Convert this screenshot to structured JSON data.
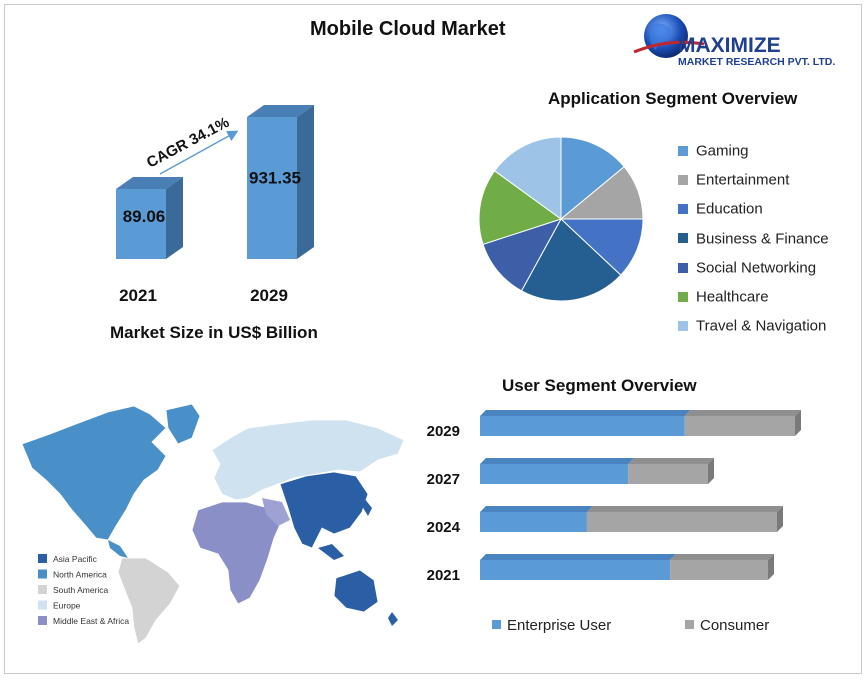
{
  "page_title": "Mobile Cloud Market",
  "logo": {
    "name": "MAXIMIZE",
    "tagline": "MARKET RESEARCH PVT. LTD."
  },
  "colors": {
    "bar_front": "#5b9bd5",
    "bar_side": "#3a6a98",
    "bar_top": "#4a7fb5",
    "gaming": "#5b9bd5",
    "entertainment": "#a5a5a5",
    "education": "#4472c4",
    "business_finance": "#255e91",
    "social_networking": "#3c5fa8",
    "healthcare": "#70ad47",
    "travel_navigation": "#9dc3e6",
    "enterprise": "#5b9bd5",
    "consumer": "#a5a5a5"
  },
  "market_size": {
    "title": "Market Size in US$ Billion",
    "cagr_label": "CAGR 34.1%"
  },
  "application": {
    "title": "Application Segment Overview"
  },
  "user": {
    "title": "User Segment Overview"
  },
  "map": {
    "legend": [
      "Asia Pacific",
      "North America",
      "South America",
      "Europe",
      "Middle East & Africa"
    ],
    "legend_colors": [
      "#2a5fa5",
      "#4a90c8",
      "#d3d3d3",
      "#cfe2f0",
      "#8b8fc8"
    ]
  },
  "chart_data": [
    {
      "type": "bar",
      "title": "Market Size in US$ Billion",
      "categories": [
        "2021",
        "2029"
      ],
      "values": [
        89.06,
        931.35
      ],
      "value_labels": [
        "89.06",
        "931.35"
      ],
      "annotation": "CAGR 34.1%"
    },
    {
      "type": "pie",
      "title": "Application Segment Overview",
      "labels": [
        "Gaming",
        "Entertainment",
        "Education",
        "Business & Finance",
        "Social Networking",
        "Healthcare",
        "Travel & Navigation"
      ],
      "values": [
        14,
        11,
        12,
        21,
        12,
        15,
        15
      ],
      "legend_position": "right"
    },
    {
      "type": "bar",
      "orientation": "horizontal",
      "stacked": true,
      "title": "User Segment Overview",
      "categories": [
        "2029",
        "2027",
        "2024",
        "2021"
      ],
      "series": [
        {
          "name": "Enterprise User",
          "values": [
            65,
            65,
            36,
            66
          ]
        },
        {
          "name": "Consumer",
          "values": [
            35,
            35,
            64,
            34
          ]
        }
      ],
      "legend_position": "bottom"
    }
  ]
}
